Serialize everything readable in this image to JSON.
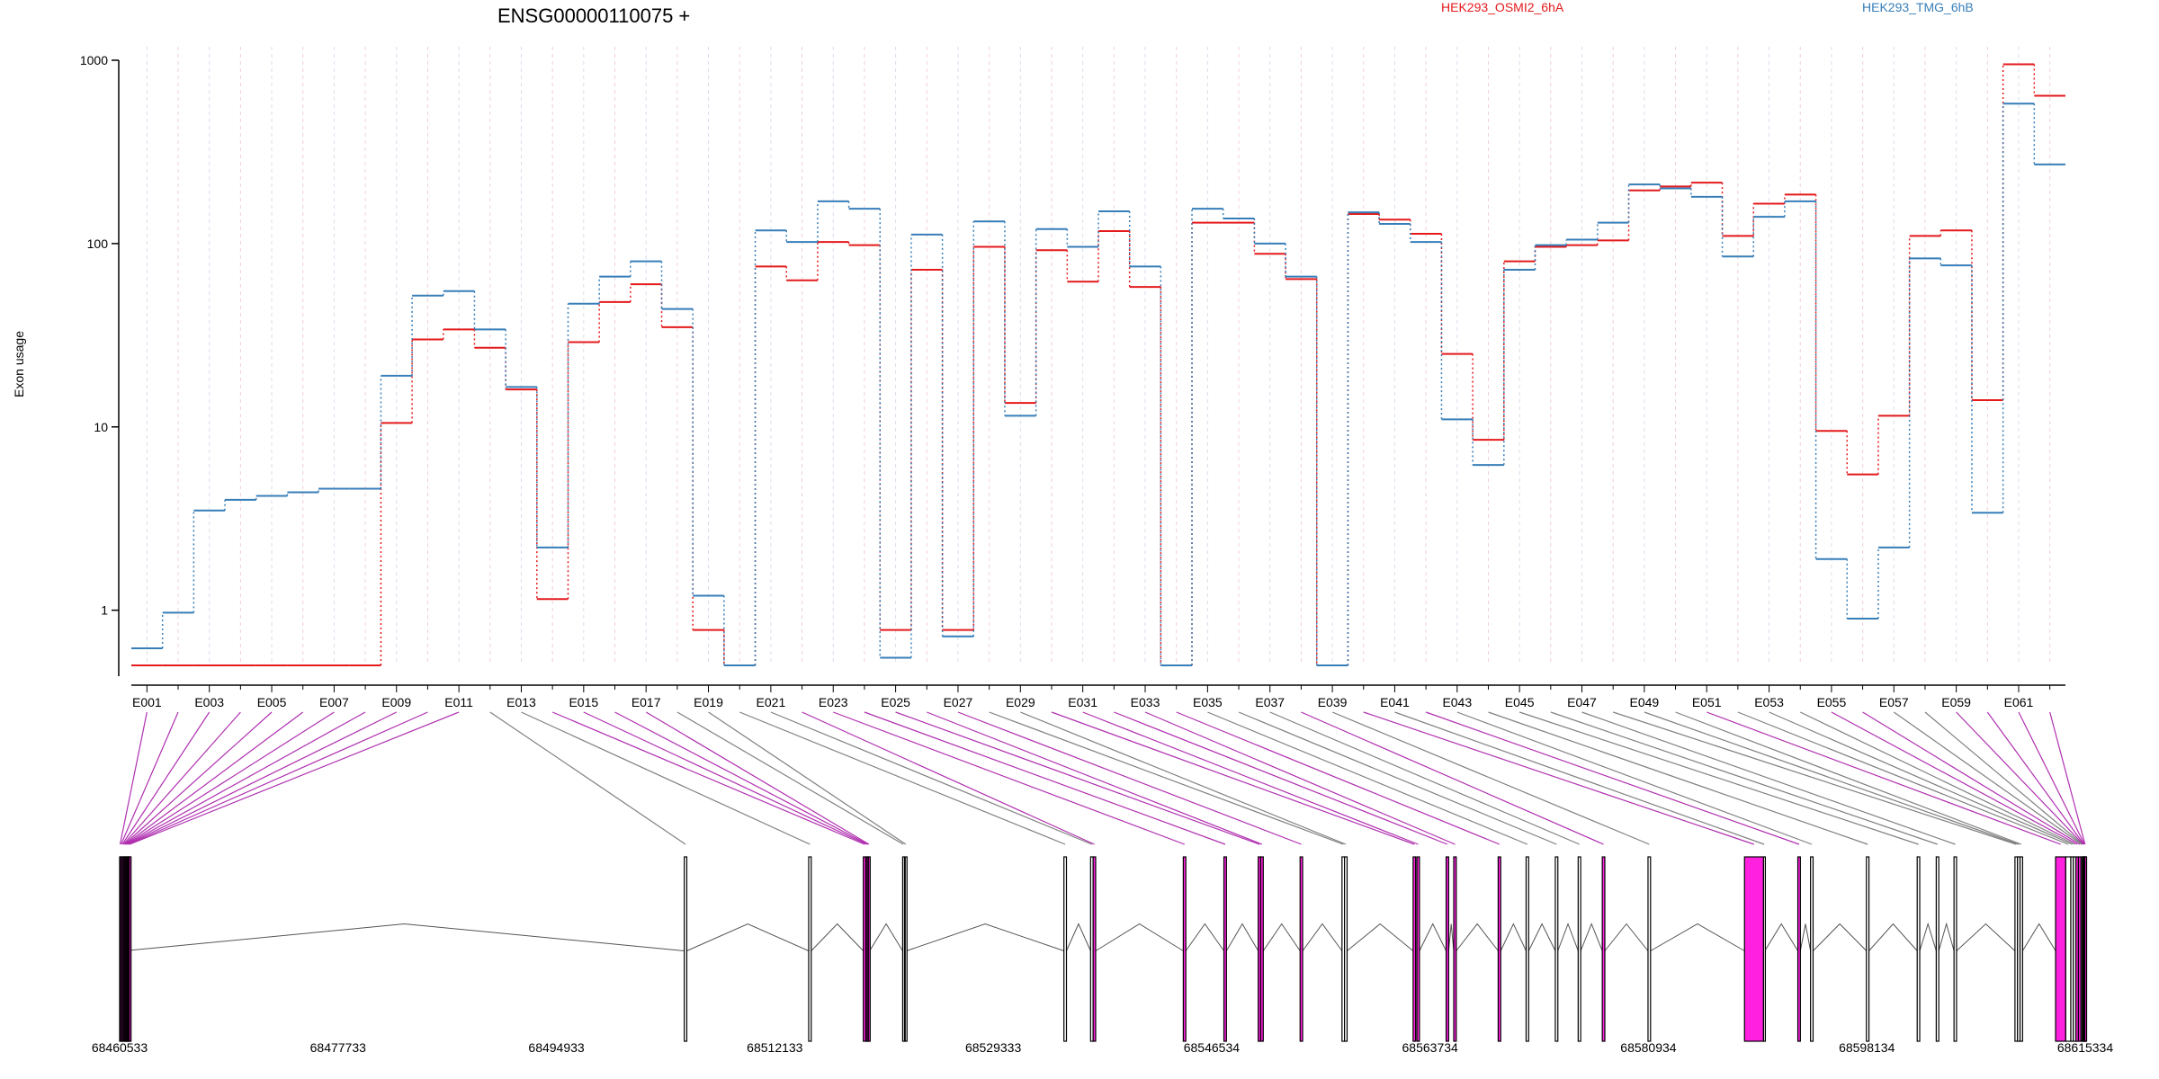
{
  "chart_data": {
    "type": "line",
    "title": "ENSG00000110075 +",
    "ylabel": "Exon usage",
    "xlabel": "",
    "yscale": "log",
    "ylim": [
      0.5,
      1000
    ],
    "yticks": [
      1,
      10,
      100,
      1000
    ],
    "ytick_labels": [
      "1",
      "10",
      "100",
      "1000"
    ],
    "grid": "vertical, per exon",
    "legend_placement": "top",
    "colors": {
      "series1": "#E41A1C",
      "series2": "#377EB8",
      "exon_normal": "#808080",
      "exon_sig": "#B030B0",
      "exon_fill": "#FF20E0"
    },
    "categories": [
      "E001",
      "E002",
      "E003",
      "E004",
      "E005",
      "E006",
      "E007",
      "E008",
      "E009",
      "E010",
      "E011",
      "E012",
      "E013",
      "E014",
      "E015",
      "E016",
      "E017",
      "E018",
      "E019",
      "E020",
      "E021",
      "E022",
      "E023",
      "E024",
      "E025",
      "E026",
      "E027",
      "E028",
      "E029",
      "E030",
      "E031",
      "E032",
      "E033",
      "E034",
      "E035",
      "E036",
      "E037",
      "E038",
      "E039",
      "E040",
      "E041",
      "E042",
      "E043",
      "E044",
      "E045",
      "E046",
      "E047",
      "E048",
      "E049",
      "E050",
      "E051",
      "E052",
      "E053",
      "E054",
      "E055",
      "E056",
      "E057",
      "E058",
      "E059",
      "E060",
      "E061",
      "E062"
    ],
    "x_tick_labels": [
      "E001",
      "E003",
      "E005",
      "E007",
      "E009",
      "E011",
      "E013",
      "E015",
      "E017",
      "E019",
      "E021",
      "E023",
      "E025",
      "E027",
      "E029",
      "E031",
      "E033",
      "E035",
      "E037",
      "E039",
      "E041",
      "E043",
      "E045",
      "E047",
      "E049",
      "E051",
      "E053",
      "E055",
      "E057",
      "E059",
      "E061"
    ],
    "series": [
      {
        "name": "HEK293_OSMI2_6hA",
        "color": "#E41A1C",
        "values": [
          0.5,
          0.5,
          0.5,
          0.5,
          0.5,
          0.5,
          0.5,
          0.5,
          10.5,
          30,
          34,
          27,
          16,
          1.15,
          29,
          48,
          60,
          35,
          0.78,
          0.5,
          75,
          63,
          102,
          98,
          0.78,
          72,
          0.78,
          96,
          13.5,
          92,
          62,
          117,
          58,
          0.5,
          130,
          130,
          88,
          64,
          0.5,
          145,
          135,
          113,
          25,
          8.5,
          80,
          96,
          98,
          104,
          195,
          205,
          215,
          110,
          165,
          185,
          9.5,
          5.5,
          11.5,
          110,
          118,
          14,
          950,
          640
        ]
      },
      {
        "name": "HEK293_TMG_6hB",
        "color": "#377EB8",
        "values": [
          0.62,
          0.97,
          3.5,
          4,
          4.2,
          4.4,
          4.6,
          4.6,
          19,
          52,
          55,
          34,
          16.5,
          2.2,
          47,
          66,
          80,
          44,
          1.2,
          0.5,
          118,
          102,
          170,
          155,
          0.55,
          112,
          0.72,
          132,
          11.5,
          120,
          96,
          150,
          75,
          0.5,
          155,
          137,
          100,
          66,
          0.5,
          148,
          128,
          102,
          11,
          6.2,
          72,
          98,
          105,
          130,
          210,
          200,
          180,
          85,
          140,
          170,
          1.9,
          0.9,
          2.2,
          83,
          76,
          3.4,
          580,
          270
        ]
      }
    ],
    "exon_significant": [
      true,
      true,
      true,
      true,
      true,
      true,
      true,
      true,
      true,
      true,
      true,
      false,
      false,
      true,
      true,
      true,
      true,
      false,
      false,
      false,
      false,
      true,
      true,
      true,
      true,
      true,
      true,
      false,
      false,
      true,
      true,
      true,
      true,
      true,
      false,
      false,
      false,
      true,
      false,
      true,
      false,
      true,
      false,
      false,
      false,
      false,
      false,
      false,
      false,
      false,
      true,
      false,
      false,
      false,
      true,
      true,
      false,
      false,
      true,
      true,
      true,
      true
    ],
    "genomic_axis": {
      "start": 68460533,
      "end": 68615334,
      "tick_labels": [
        "68460533",
        "68477733",
        "68494933",
        "68512133",
        "68529333",
        "68546534",
        "68563734",
        "68580934",
        "68598134",
        "68615334"
      ]
    },
    "exon_coords": [
      [
        68460533,
        68460600
      ],
      [
        68460600,
        68460700
      ],
      [
        68460700,
        68460800
      ],
      [
        68460800,
        68460870
      ],
      [
        68460870,
        68460940
      ],
      [
        68460940,
        68461010
      ],
      [
        68461010,
        68461080
      ],
      [
        68461080,
        68461150
      ],
      [
        68461150,
        68461220
      ],
      [
        68461220,
        68461290
      ],
      [
        68461290,
        68461360
      ],
      [
        68505000,
        68505200
      ],
      [
        68514800,
        68515000
      ],
      [
        68519100,
        68519300
      ],
      [
        68519300,
        68519400
      ],
      [
        68519400,
        68519500
      ],
      [
        68519500,
        68519600
      ],
      [
        68522200,
        68522300
      ],
      [
        68522400,
        68522500
      ],
      [
        68534900,
        68535100
      ],
      [
        68537000,
        68537200
      ],
      [
        68537200,
        68537400
      ],
      [
        68544300,
        68544500
      ],
      [
        68547500,
        68547700
      ],
      [
        68550200,
        68550400
      ],
      [
        68550400,
        68550600
      ],
      [
        68553500,
        68553700
      ],
      [
        68556800,
        68557000
      ],
      [
        68557000,
        68557200
      ],
      [
        68562400,
        68562600
      ],
      [
        68562700,
        68562900
      ],
      [
        68565000,
        68565200
      ],
      [
        68565600,
        68565800
      ],
      [
        68569100,
        68569300
      ],
      [
        68571300,
        68571500
      ],
      [
        68573600,
        68573800
      ],
      [
        68575400,
        68575600
      ],
      [
        68577300,
        68577500
      ],
      [
        68580900,
        68581100
      ],
      [
        68588500,
        68590000
      ],
      [
        68590000,
        68590100
      ],
      [
        68592700,
        68592900
      ],
      [
        68593700,
        68593900
      ],
      [
        68598100,
        68598300
      ],
      [
        68602100,
        68602300
      ],
      [
        68603600,
        68603800
      ],
      [
        68605000,
        68605200
      ],
      [
        68609800,
        68610000
      ],
      [
        68610000,
        68610200
      ],
      [
        68610200,
        68610400
      ],
      [
        68613000,
        68613800
      ],
      [
        68613800,
        68614200
      ],
      [
        68614200,
        68614400
      ],
      [
        68614400,
        68614600
      ],
      [
        68614600,
        68614800
      ],
      [
        68614800,
        68615000
      ],
      [
        68615000,
        68615100
      ],
      [
        68615100,
        68615150
      ],
      [
        68615150,
        68615200
      ],
      [
        68615200,
        68615250
      ],
      [
        68615250,
        68615300
      ],
      [
        68615300,
        68615334
      ]
    ],
    "introns": [
      [
        68460900,
        68505000
      ],
      [
        68505200,
        68514800
      ],
      [
        68515000,
        68519100
      ],
      [
        68519600,
        68522200
      ],
      [
        68522500,
        68534900
      ],
      [
        68535100,
        68537000
      ],
      [
        68537400,
        68544300
      ],
      [
        68544500,
        68547500
      ],
      [
        68547700,
        68550200
      ],
      [
        68550600,
        68553500
      ],
      [
        68553700,
        68556800
      ],
      [
        68557200,
        68562400
      ],
      [
        68562900,
        68565000
      ],
      [
        68565200,
        68565600
      ],
      [
        68565800,
        68569100
      ],
      [
        68569300,
        68571300
      ],
      [
        68571500,
        68573600
      ],
      [
        68573800,
        68575400
      ],
      [
        68575600,
        68577300
      ],
      [
        68577500,
        68580900
      ],
      [
        68581100,
        68588500
      ],
      [
        68590100,
        68592700
      ],
      [
        68592900,
        68593700
      ],
      [
        68593900,
        68598100
      ],
      [
        68598300,
        68602100
      ],
      [
        68602300,
        68603600
      ],
      [
        68603800,
        68605000
      ],
      [
        68605200,
        68609800
      ],
      [
        68610400,
        68613000
      ]
    ]
  }
}
